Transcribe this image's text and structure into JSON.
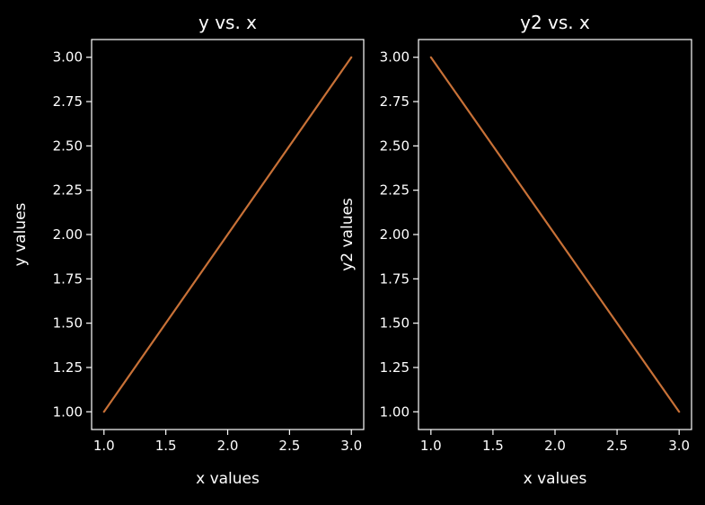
{
  "chart_data": [
    {
      "type": "line",
      "title": "y vs. x",
      "xlabel": "x values",
      "ylabel": "y values",
      "xlim": [
        0.9,
        3.1
      ],
      "ylim": [
        0.9,
        3.1
      ],
      "xticks": [
        "1.0",
        "1.5",
        "2.0",
        "2.5",
        "3.0"
      ],
      "xtick_values": [
        1.0,
        1.5,
        2.0,
        2.5,
        3.0
      ],
      "yticks": [
        "1.00",
        "1.25",
        "1.50",
        "1.75",
        "2.00",
        "2.25",
        "2.50",
        "2.75",
        "3.00"
      ],
      "ytick_values": [
        1.0,
        1.25,
        1.5,
        1.75,
        2.0,
        2.25,
        2.5,
        2.75,
        3.0
      ],
      "grid": false,
      "series": [
        {
          "x": [
            1,
            2,
            3
          ],
          "y": [
            1,
            2,
            3
          ],
          "color": "#c87137"
        }
      ]
    },
    {
      "type": "line",
      "title": "y2 vs. x",
      "xlabel": "x values",
      "ylabel": "y2 values",
      "xlim": [
        0.9,
        3.1
      ],
      "ylim": [
        0.9,
        3.1
      ],
      "xticks": [
        "1.0",
        "1.5",
        "2.0",
        "2.5",
        "3.0"
      ],
      "xtick_values": [
        1.0,
        1.5,
        2.0,
        2.5,
        3.0
      ],
      "yticks": [
        "1.00",
        "1.25",
        "1.50",
        "1.75",
        "2.00",
        "2.25",
        "2.50",
        "2.75",
        "3.00"
      ],
      "ytick_values": [
        1.0,
        1.25,
        1.5,
        1.75,
        2.0,
        2.25,
        2.5,
        2.75,
        3.0
      ],
      "grid": false,
      "series": [
        {
          "x": [
            1,
            2,
            3
          ],
          "y": [
            3,
            2,
            1
          ],
          "color": "#c87137"
        }
      ]
    }
  ]
}
